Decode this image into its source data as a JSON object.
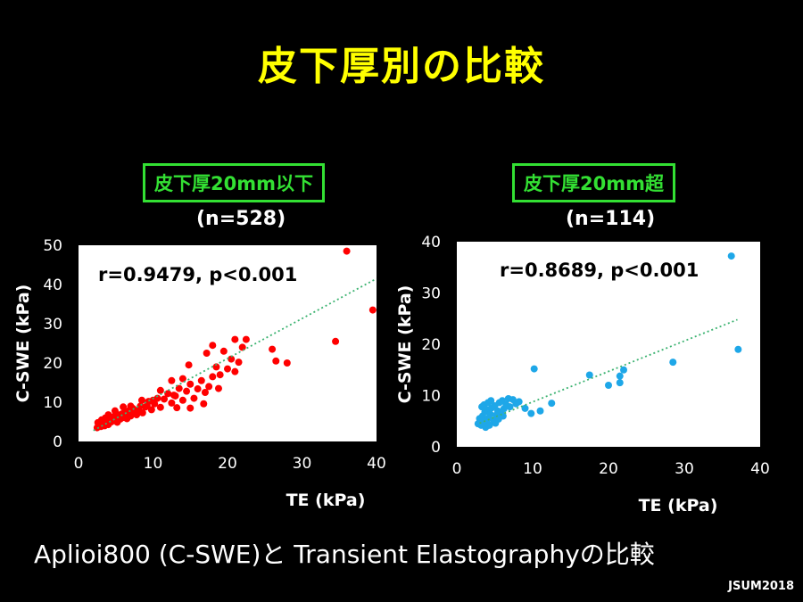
{
  "slide_title": "皮下厚別の比較",
  "footer_text": "Aplioi800 (C-SWE)と Transient Elastographyの比較",
  "credit": "JSUM2018",
  "chart_data": [
    {
      "type": "scatter",
      "group_label": "皮下厚20mm以下",
      "n_label": "(n=528)",
      "annotation": "r=0.9479, p<0.001",
      "xlabel": "TE (kPa)",
      "ylabel": "C-SWE (kPa)",
      "xlim": [
        0,
        40
      ],
      "ylim": [
        0,
        50
      ],
      "xticks": [
        0,
        10,
        20,
        30,
        40
      ],
      "yticks": [
        0,
        10,
        20,
        30,
        40,
        50
      ],
      "color": "#ff0000",
      "trendline": {
        "x": [
          2,
          40
        ],
        "y": [
          2.8,
          41.5
        ],
        "color": "#3cb371",
        "style": "dotted"
      },
      "points": [
        [
          2.5,
          3.5
        ],
        [
          2.8,
          4.2
        ],
        [
          3,
          3.8
        ],
        [
          3.2,
          4.5
        ],
        [
          3.4,
          5.1
        ],
        [
          3.5,
          4
        ],
        [
          3.7,
          4.8
        ],
        [
          3.9,
          5.5
        ],
        [
          4,
          4.3
        ],
        [
          4.2,
          5.8
        ],
        [
          4.4,
          5
        ],
        [
          4.6,
          6.2
        ],
        [
          4.8,
          5.4
        ],
        [
          5,
          6
        ],
        [
          5.2,
          4.9
        ],
        [
          5.4,
          6.6
        ],
        [
          5.6,
          5.7
        ],
        [
          5.8,
          7
        ],
        [
          6,
          6.1
        ],
        [
          6.2,
          7.5
        ],
        [
          6.5,
          5.8
        ],
        [
          6.8,
          7.9
        ],
        [
          7,
          6.5
        ],
        [
          7.3,
          8.4
        ],
        [
          7.6,
          7.1
        ],
        [
          8,
          8
        ],
        [
          8.3,
          9
        ],
        [
          8.6,
          7.3
        ],
        [
          9,
          8.8
        ],
        [
          9.4,
          10.2
        ],
        [
          9.8,
          8.1
        ],
        [
          10.2,
          9.6
        ],
        [
          10.6,
          11
        ],
        [
          11,
          8.7
        ],
        [
          11.5,
          10.8
        ],
        [
          12,
          12.2
        ],
        [
          12.5,
          9.8
        ],
        [
          13,
          11.6
        ],
        [
          13.5,
          13.5
        ],
        [
          14,
          10.5
        ],
        [
          14.5,
          12.8
        ],
        [
          15,
          14.6
        ],
        [
          15.5,
          11
        ],
        [
          16,
          13.4
        ],
        [
          16.5,
          15.5
        ],
        [
          17,
          12.5
        ],
        [
          17.5,
          14
        ],
        [
          18,
          16.5
        ],
        [
          18.5,
          19
        ],
        [
          19,
          17
        ],
        [
          20,
          18.5
        ],
        [
          20.5,
          21
        ],
        [
          21,
          17.8
        ],
        [
          21.5,
          20.2
        ],
        [
          22,
          24
        ],
        [
          22.5,
          26
        ],
        [
          21,
          26
        ],
        [
          18,
          24.5
        ],
        [
          19.5,
          23
        ],
        [
          26,
          23.5
        ],
        [
          26.5,
          20.5
        ],
        [
          28,
          20
        ],
        [
          34.5,
          25.5
        ],
        [
          36,
          48.5
        ],
        [
          39.5,
          33.5
        ],
        [
          12.5,
          15.5
        ],
        [
          14,
          16
        ],
        [
          15,
          8.5
        ],
        [
          10,
          10.5
        ],
        [
          11,
          13
        ],
        [
          7,
          9
        ],
        [
          8.5,
          10.5
        ],
        [
          6,
          8.8
        ],
        [
          5,
          7.2
        ],
        [
          4,
          6.8
        ],
        [
          3.6,
          6
        ],
        [
          2.6,
          4.8
        ],
        [
          3.1,
          5.5
        ],
        [
          4.9,
          7.8
        ],
        [
          6.6,
          6.4
        ],
        [
          7.8,
          6.8
        ],
        [
          9.2,
          9.2
        ],
        [
          12.8,
          11.8
        ],
        [
          13.2,
          8.6
        ],
        [
          16.8,
          9.6
        ],
        [
          14.8,
          19.5
        ],
        [
          17.2,
          22.5
        ],
        [
          18.8,
          13.5
        ]
      ]
    },
    {
      "type": "scatter",
      "group_label": "皮下厚20mm超",
      "n_label": "(n=114)",
      "annotation": "r=0.8689, p<0.001",
      "xlabel": "TE (kPa)",
      "ylabel": "C-SWE (kPa)",
      "xlim": [
        0,
        40
      ],
      "ylim": [
        0,
        40
      ],
      "xticks": [
        0,
        10,
        20,
        30,
        40
      ],
      "yticks": [
        0,
        10,
        20,
        30,
        40
      ],
      "color": "#1ea7e8",
      "trendline": {
        "x": [
          3,
          37
        ],
        "y": [
          4.6,
          24.8
        ],
        "color": "#3cb371",
        "style": "dotted"
      },
      "points": [
        [
          2.8,
          4.5
        ],
        [
          3,
          5.5
        ],
        [
          3.2,
          4.2
        ],
        [
          3.4,
          6
        ],
        [
          3.5,
          5
        ],
        [
          3.7,
          6.8
        ],
        [
          3.9,
          4.8
        ],
        [
          4,
          7.2
        ],
        [
          4.2,
          5.6
        ],
        [
          4.4,
          6.4
        ],
        [
          4.6,
          7.6
        ],
        [
          4.8,
          5.2
        ],
        [
          5,
          8
        ],
        [
          5.2,
          6.2
        ],
        [
          5.4,
          7
        ],
        [
          5.6,
          8.6
        ],
        [
          5.8,
          6.6
        ],
        [
          6,
          9
        ],
        [
          6.2,
          7.4
        ],
        [
          6.5,
          8.2
        ],
        [
          6.8,
          9.4
        ],
        [
          7,
          7.8
        ],
        [
          7.4,
          9.2
        ],
        [
          7.8,
          8.4
        ],
        [
          3.3,
          7.8
        ],
        [
          3.6,
          8.2
        ],
        [
          4.1,
          8.6
        ],
        [
          4.5,
          9
        ],
        [
          3.8,
          3.8
        ],
        [
          4.3,
          4.2
        ],
        [
          5.1,
          4.6
        ],
        [
          5.5,
          5.4
        ],
        [
          6.1,
          6
        ],
        [
          8.2,
          8.8
        ],
        [
          9,
          7.5
        ],
        [
          9.8,
          6.5
        ],
        [
          10.2,
          15.2
        ],
        [
          11,
          7
        ],
        [
          12.5,
          8.5
        ],
        [
          17.5,
          14
        ],
        [
          20,
          12
        ],
        [
          21.5,
          12.5
        ],
        [
          21.5,
          13.8
        ],
        [
          22,
          15
        ],
        [
          28.5,
          16.5
        ],
        [
          36.2,
          37.2
        ],
        [
          37.1,
          19
        ]
      ]
    }
  ]
}
